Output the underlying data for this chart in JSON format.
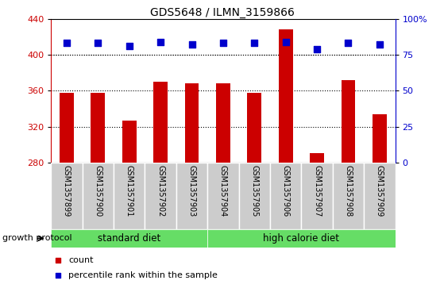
{
  "title": "GDS5648 / ILMN_3159866",
  "samples": [
    "GSM1357899",
    "GSM1357900",
    "GSM1357901",
    "GSM1357902",
    "GSM1357903",
    "GSM1357904",
    "GSM1357905",
    "GSM1357906",
    "GSM1357907",
    "GSM1357908",
    "GSM1357909"
  ],
  "counts": [
    358,
    358,
    327,
    370,
    368,
    368,
    358,
    428,
    291,
    372,
    334
  ],
  "percentiles": [
    83,
    83,
    81,
    84,
    82,
    83,
    83,
    84,
    79,
    83,
    82
  ],
  "ymin": 280,
  "ymax": 440,
  "yticks": [
    280,
    320,
    360,
    400,
    440
  ],
  "y2min": 0,
  "y2max": 100,
  "y2ticks": [
    0,
    25,
    50,
    75,
    100
  ],
  "grid_values": [
    320,
    360,
    400
  ],
  "bar_color": "#cc0000",
  "dot_color": "#0000cc",
  "standard_diet_label": "standard diet",
  "high_calorie_label": "high calorie diet",
  "group_label": "growth protocol",
  "legend_count": "count",
  "legend_pct": "percentile rank within the sample",
  "bar_width": 0.45,
  "dot_size": 30,
  "sample_box_color": "#cccccc",
  "group_color": "#66dd66",
  "title_color": "#000000",
  "left_axis_color": "#cc0000",
  "right_axis_color": "#0000cc",
  "n_standard": 5,
  "n_total": 11
}
